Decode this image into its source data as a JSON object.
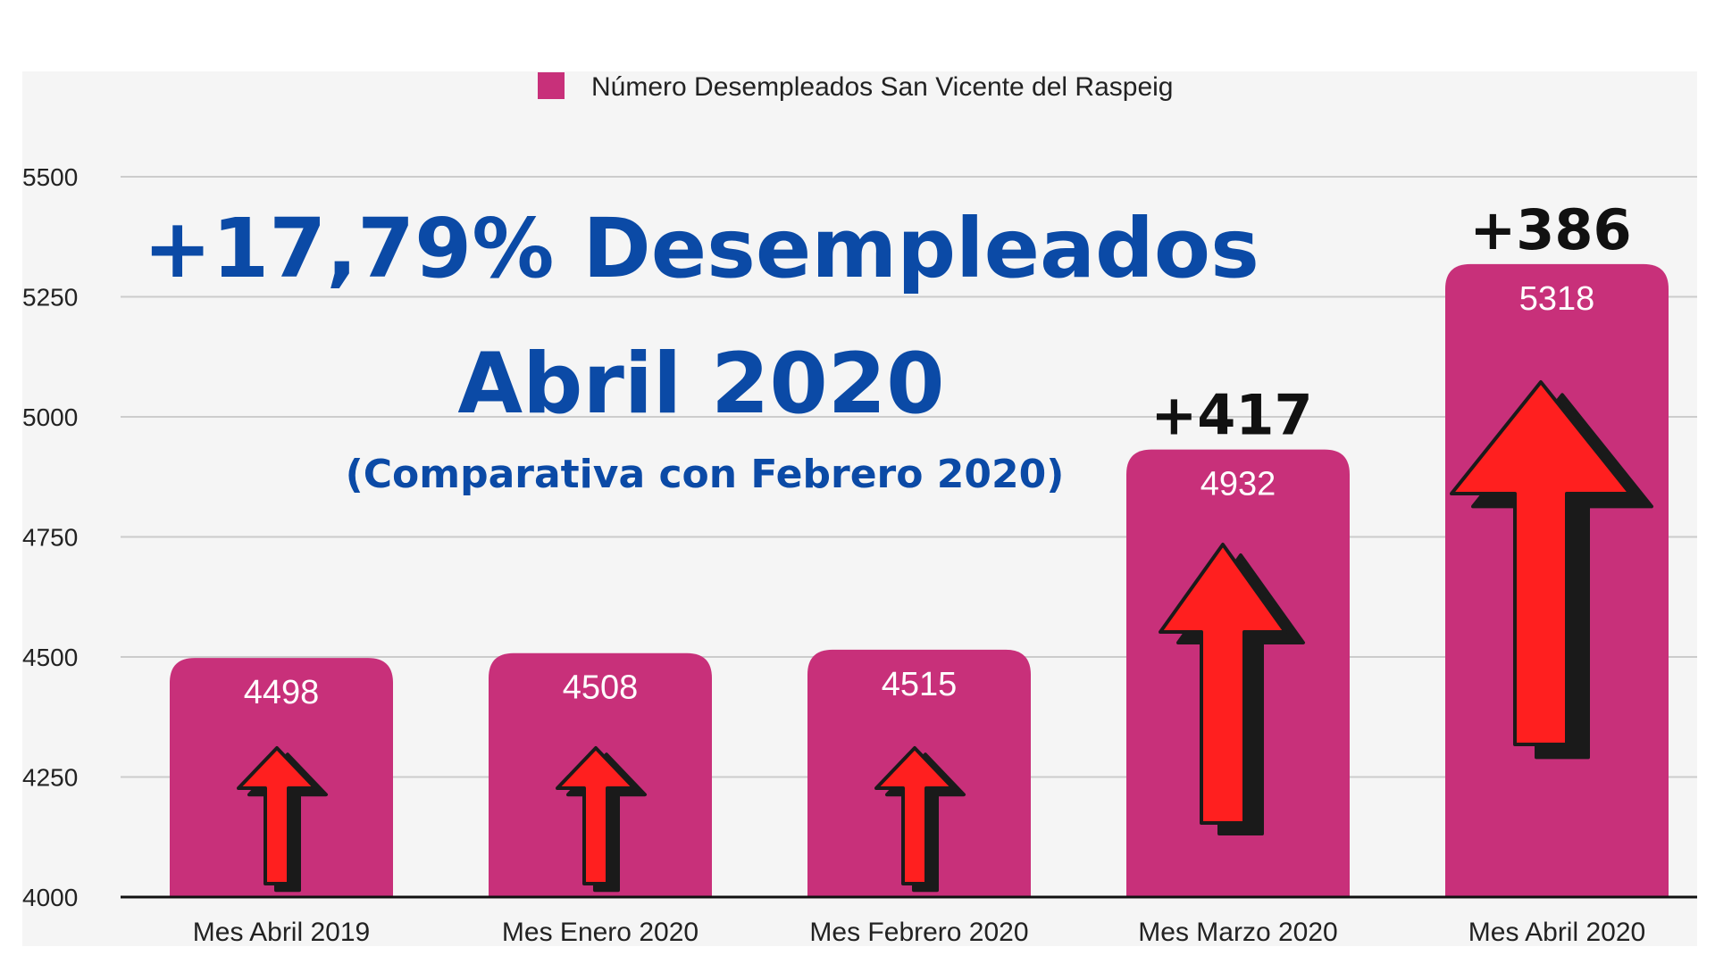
{
  "headline": {
    "line1": "+17,79% Desempleados",
    "line2": "Abril 2020",
    "line3": "(Comparativa con Febrero 2020)"
  },
  "chart_data": {
    "type": "bar",
    "categories": [
      "Mes Abril 2019",
      "Mes Enero 2020",
      "Mes Febrero 2020",
      "Mes Marzo 2020",
      "Mes Abril 2020"
    ],
    "series": [
      {
        "name": "Número Desempleados San Vicente del Raspeig",
        "values": [
          4498,
          4508,
          4515,
          4932,
          5318
        ]
      }
    ],
    "value_labels": [
      "4498",
      "4508",
      "4515",
      "4932",
      "5318"
    ],
    "yticks": [
      4000,
      4250,
      4500,
      4750,
      5000,
      5250,
      5500
    ],
    "ylim": [
      4000,
      5500
    ],
    "annotations": [
      {
        "category_index": 3,
        "text": "+417"
      },
      {
        "category_index": 4,
        "text": "+386"
      }
    ],
    "legend_position": "top-center",
    "grid": true,
    "title": "",
    "xlabel": "",
    "ylabel": ""
  },
  "colors": {
    "bar": "#c8307a",
    "plot_background": "#f5f5f5",
    "grid": "#cccccc",
    "axis": "#111111",
    "headline": "#0b4aa6",
    "arrow_fill": "#ff1f1f",
    "arrow_shadow": "#1a1a1a"
  }
}
